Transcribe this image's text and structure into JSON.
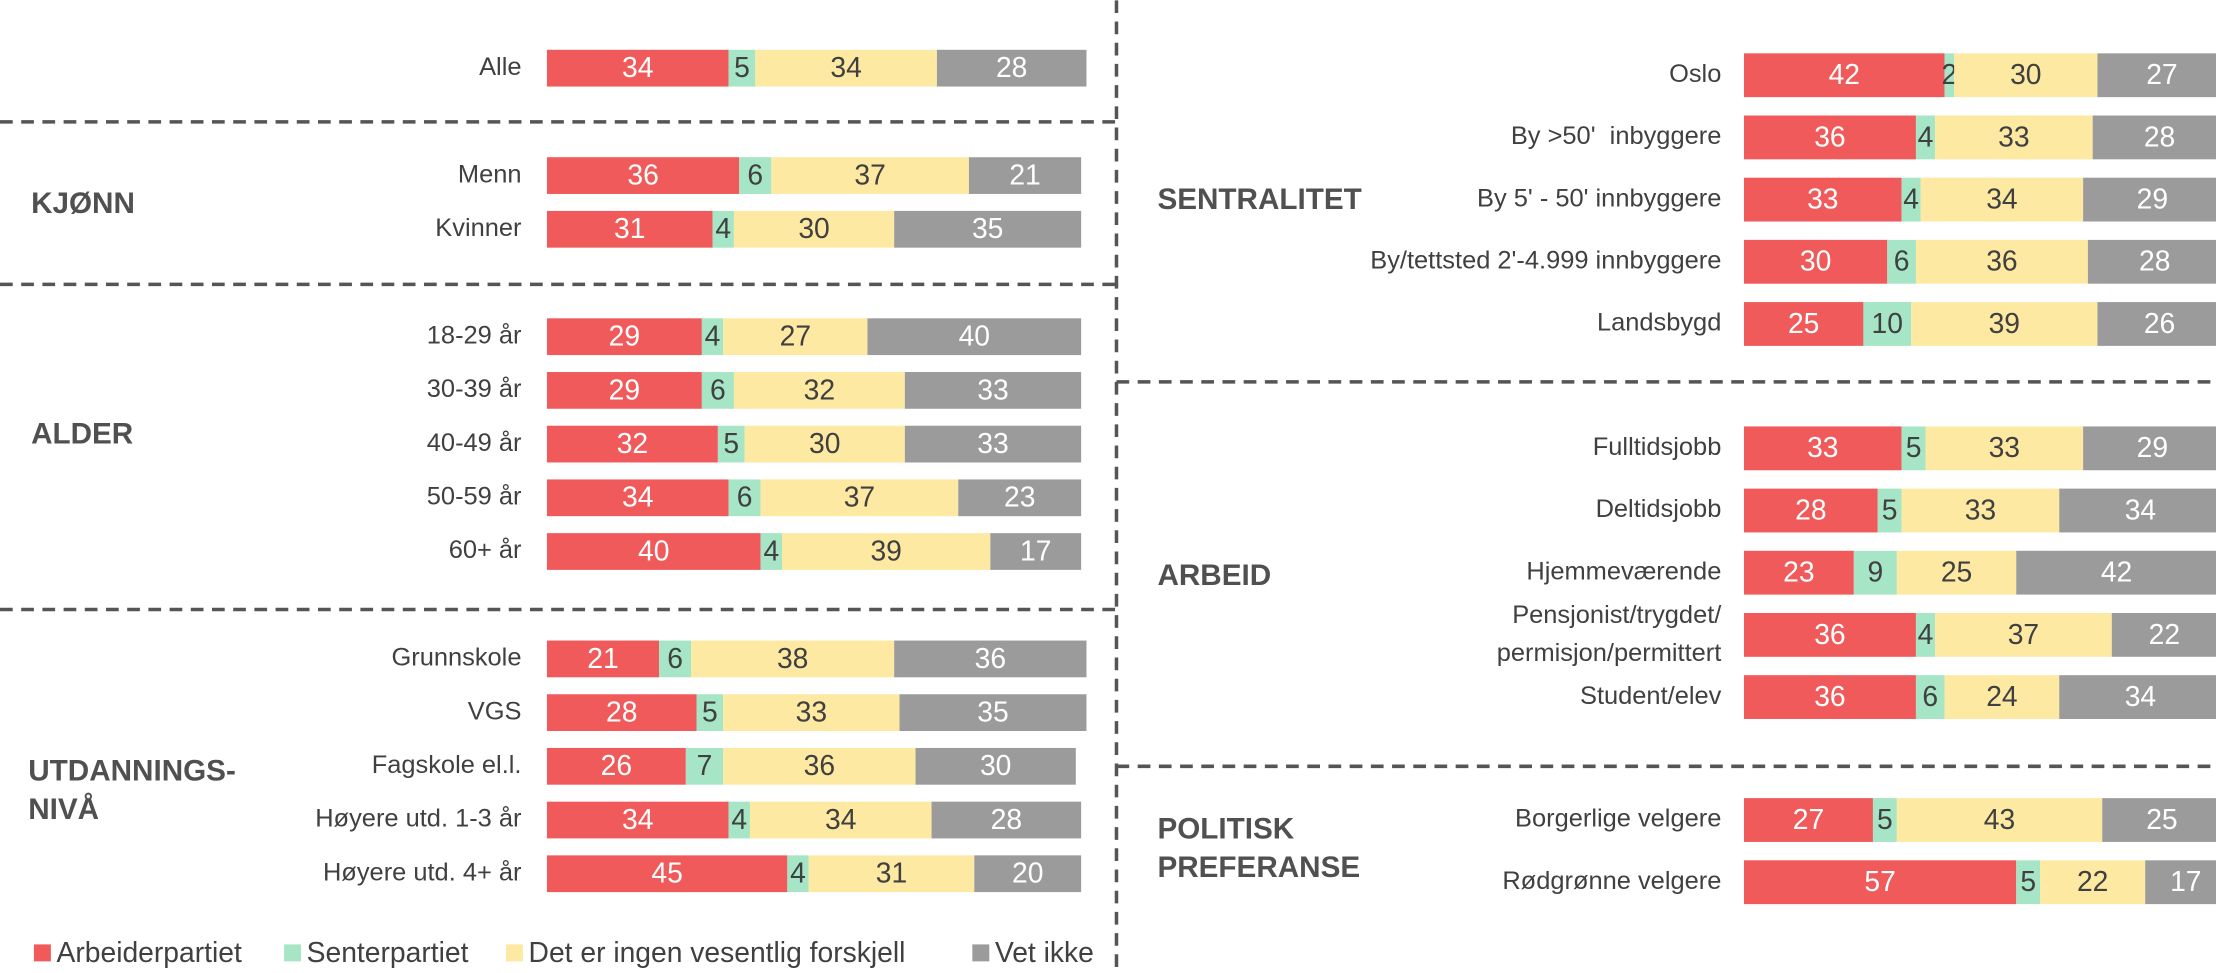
{
  "chart_data": [
    {
      "type": "bar",
      "stacked": true,
      "categories": [
        "Alle"
      ],
      "series": [
        {
          "name": "Arbeiderpartiet",
          "color": "#f05a5a",
          "values": [
            34
          ]
        },
        {
          "name": "Senterpartiet",
          "color": "#a6e5c6",
          "values": [
            5
          ]
        },
        {
          "name": "Det er ingen vesentlig forskjell",
          "color": "#fde9a2",
          "values": [
            34
          ]
        },
        {
          "name": "Vet ikke",
          "color": "#9b9b9b",
          "values": [
            28
          ]
        }
      ]
    },
    {
      "type": "bar",
      "stacked": true,
      "title": "KJØNN",
      "categories": [
        "Menn",
        "Kvinner"
      ],
      "series": [
        {
          "values": [
            36,
            31
          ]
        },
        {
          "values": [
            6,
            4
          ]
        },
        {
          "values": [
            37,
            30
          ]
        },
        {
          "values": [
            21,
            35
          ]
        }
      ]
    },
    {
      "type": "bar",
      "stacked": true,
      "title": "ALDER",
      "categories": [
        "18-29 år",
        "30-39 år",
        "40-49 år",
        "50-59 år",
        "60+ år"
      ],
      "series": [
        {
          "values": [
            29,
            29,
            32,
            34,
            40
          ]
        },
        {
          "values": [
            4,
            6,
            5,
            6,
            4
          ]
        },
        {
          "values": [
            27,
            32,
            30,
            37,
            39
          ]
        },
        {
          "values": [
            40,
            33,
            33,
            23,
            17
          ]
        }
      ]
    },
    {
      "type": "bar",
      "stacked": true,
      "title": "UTDANNINGS-\nNIVÅ",
      "categories": [
        "Grunnskole",
        "VGS",
        "Fagskole el.l.",
        "Høyere utd. 1-3 år",
        "Høyere utd. 4+ år"
      ],
      "series": [
        {
          "values": [
            21,
            28,
            26,
            34,
            45
          ]
        },
        {
          "values": [
            6,
            5,
            7,
            4,
            4
          ]
        },
        {
          "values": [
            38,
            33,
            36,
            34,
            31
          ]
        },
        {
          "values": [
            36,
            35,
            30,
            28,
            20
          ]
        }
      ]
    },
    {
      "type": "bar",
      "stacked": true,
      "title": "SENTRALITET",
      "categories": [
        "Oslo",
        "By >50'  inbyggere",
        "By 5' - 50' innbyggere",
        "By/tettsted 2'-4.999 innbyggere",
        "Landsbygd"
      ],
      "series": [
        {
          "values": [
            42,
            36,
            33,
            30,
            25
          ]
        },
        {
          "values": [
            2,
            4,
            4,
            6,
            10
          ]
        },
        {
          "values": [
            30,
            33,
            34,
            36,
            39
          ]
        },
        {
          "values": [
            27,
            28,
            29,
            28,
            26
          ]
        }
      ]
    },
    {
      "type": "bar",
      "stacked": true,
      "title": "ARBEID",
      "categories": [
        "Fulltidsjobb",
        "Deltidsjobb",
        "Hjemmeværende",
        "Pensjonist/trygdet/\npermisjon/permittert",
        "Student/elev"
      ],
      "series": [
        {
          "values": [
            33,
            28,
            23,
            36,
            36
          ]
        },
        {
          "values": [
            5,
            5,
            9,
            4,
            6
          ]
        },
        {
          "values": [
            33,
            33,
            25,
            37,
            24
          ]
        },
        {
          "values": [
            29,
            34,
            42,
            22,
            34
          ]
        }
      ]
    },
    {
      "type": "bar",
      "stacked": true,
      "title": "POLITISK\nPREFERANSE",
      "categories": [
        "Borgerlige velgere",
        "Rødgrønne velgere"
      ],
      "series": [
        {
          "values": [
            27,
            57
          ]
        },
        {
          "values": [
            5,
            5
          ]
        },
        {
          "values": [
            43,
            22
          ]
        },
        {
          "values": [
            25,
            17
          ]
        }
      ]
    }
  ]
}
